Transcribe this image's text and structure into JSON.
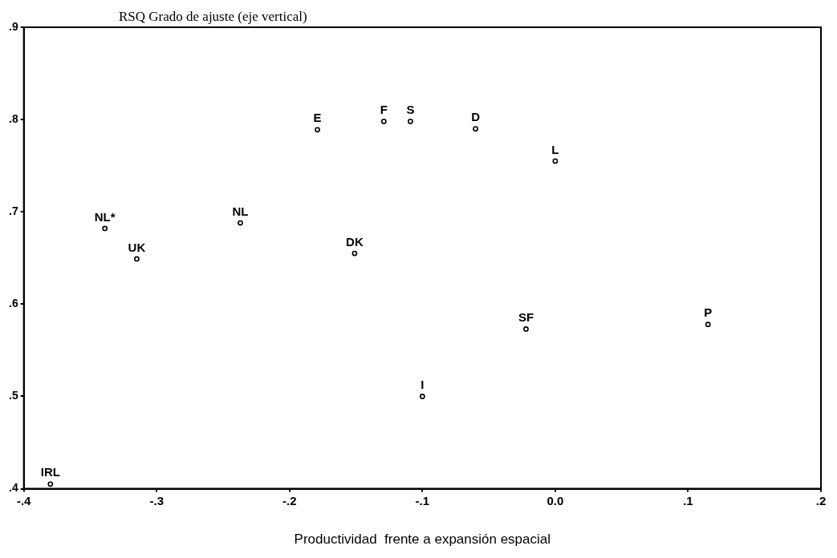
{
  "chart_data": {
    "type": "scatter",
    "ylabel": "RSQ Grado de ajuste (eje vertical)",
    "xlabel": "Productividad  frente a expansión espacial",
    "x": [
      -0.38,
      -0.339,
      -0.315,
      -0.237,
      -0.179,
      -0.151,
      -0.129,
      -0.109,
      -0.1,
      -0.06,
      -0.022,
      0.0,
      0.115
    ],
    "series": [
      {
        "color": "#000000",
        "values": [
          0.405,
          0.682,
          0.649,
          0.688,
          0.789,
          0.655,
          0.798,
          0.798,
          0.5,
          0.79,
          0.573,
          0.755,
          0.578
        ]
      }
    ],
    "annotations": [
      {
        "text": "IRL",
        "x": -0.38,
        "y": 0.405
      },
      {
        "text": "NL*",
        "x": -0.339,
        "y": 0.682
      },
      {
        "text": "UK",
        "x": -0.315,
        "y": 0.649
      },
      {
        "text": "NL",
        "x": -0.237,
        "y": 0.688
      },
      {
        "text": "E",
        "x": -0.179,
        "y": 0.789
      },
      {
        "text": "DK",
        "x": -0.151,
        "y": 0.655
      },
      {
        "text": "F",
        "x": -0.129,
        "y": 0.798
      },
      {
        "text": "S",
        "x": -0.109,
        "y": 0.798
      },
      {
        "text": "I",
        "x": -0.1,
        "y": 0.5
      },
      {
        "text": "D",
        "x": -0.06,
        "y": 0.79
      },
      {
        "text": "SF",
        "x": -0.022,
        "y": 0.573
      },
      {
        "text": "L",
        "x": 0.0,
        "y": 0.755
      },
      {
        "text": "P",
        "x": 0.115,
        "y": 0.578
      }
    ],
    "xlim": [
      -0.4,
      0.2
    ],
    "xticks": [
      {
        "value": -0.4,
        "label": "-.4"
      },
      {
        "value": -0.3,
        "label": "-.3"
      },
      {
        "value": -0.2,
        "label": "-.2"
      },
      {
        "value": -0.1,
        "label": "-.1"
      },
      {
        "value": 0,
        "label": "0.0"
      },
      {
        "value": 0.1,
        "label": ".1"
      },
      {
        "value": 0.2,
        "label": ".2"
      }
    ],
    "ylim": [
      0.4,
      0.9
    ],
    "yticks": [
      {
        "value": 0.4,
        "label": ".4"
      },
      {
        "value": 0.5,
        "label": ".5"
      },
      {
        "value": 0.6,
        "label": ".6"
      },
      {
        "value": 0.7,
        "label": ".7"
      },
      {
        "value": 0.8,
        "label": ".8"
      },
      {
        "value": 0.9,
        "label": ".9"
      }
    ],
    "grid": false,
    "legend": false,
    "marker": "circle"
  }
}
